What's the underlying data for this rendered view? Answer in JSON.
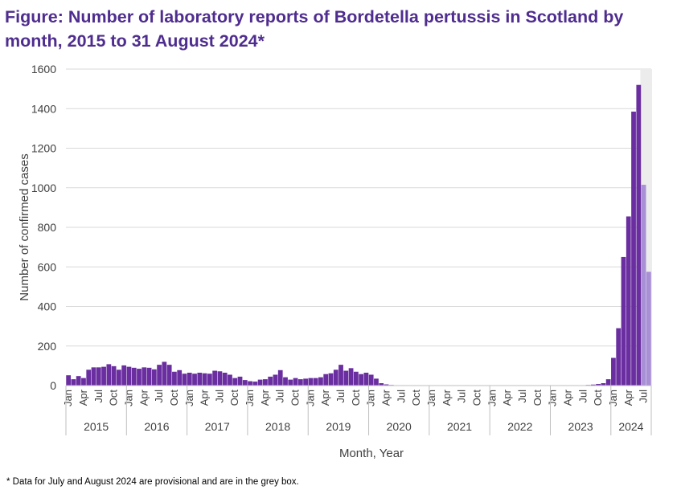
{
  "title": "Figure: Number of laboratory reports of Bordetella pertussis in Scotland by month, 2015 to 31 August 2024*",
  "footnote": "* Data for July and August 2024 are provisional and are in the grey box.",
  "chart_data": {
    "type": "bar",
    "xlabel": "Month, Year",
    "ylabel": "Number of confirmed cases",
    "ylim": [
      0,
      1600
    ],
    "yticks": [
      0,
      200,
      400,
      600,
      800,
      1000,
      1200,
      1400,
      1600
    ],
    "grid": true,
    "month_tick_labels": [
      "Jan",
      "Apr",
      "Jul",
      "Oct"
    ],
    "years": [
      "2015",
      "2016",
      "2017",
      "2018",
      "2019",
      "2020",
      "2021",
      "2022",
      "2023",
      "2024"
    ],
    "colors": {
      "confirmed": "#6a2ea0",
      "provisional": "#a98fd6",
      "provisional_box": "#ececec",
      "grid": "#d9d9d9"
    },
    "provisional_note": "July and August 2024 are provisional",
    "values": [
      52,
      32,
      48,
      38,
      80,
      92,
      92,
      95,
      108,
      98,
      80,
      102,
      95,
      90,
      85,
      92,
      90,
      82,
      105,
      120,
      105,
      70,
      78,
      60,
      65,
      60,
      65,
      62,
      60,
      75,
      72,
      65,
      55,
      38,
      45,
      28,
      22,
      20,
      30,
      32,
      45,
      55,
      78,
      42,
      30,
      38,
      32,
      35,
      38,
      38,
      42,
      58,
      62,
      80,
      105,
      75,
      88,
      70,
      58,
      65,
      55,
      35,
      12,
      6,
      3,
      2,
      1,
      1,
      1,
      1,
      1,
      1,
      1,
      1,
      1,
      1,
      1,
      1,
      1,
      1,
      1,
      1,
      1,
      1,
      1,
      1,
      1,
      1,
      1,
      1,
      1,
      1,
      1,
      1,
      1,
      1,
      1,
      1,
      1,
      1,
      1,
      1,
      2,
      3,
      5,
      8,
      12,
      32,
      140,
      290,
      650,
      855,
      1385,
      1520,
      1015,
      575
    ],
    "provisional_count": 2
  }
}
